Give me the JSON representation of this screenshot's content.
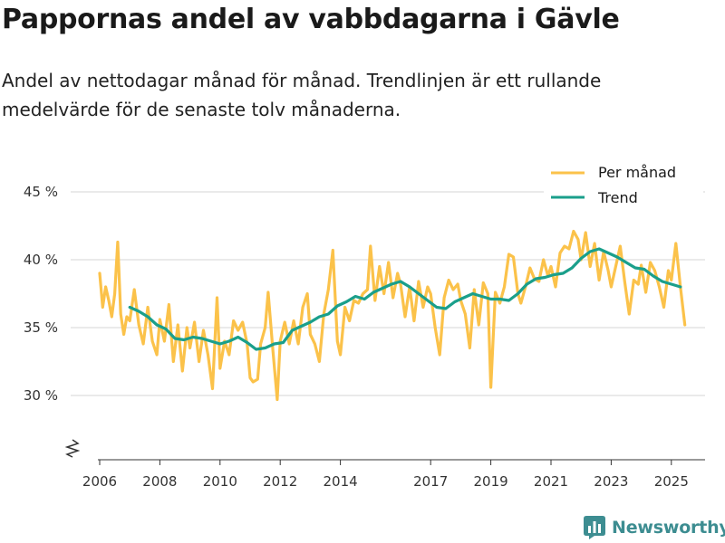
{
  "title": "Pappornas andel av vabbdagarna i Gävle",
  "subtitle": "Andel av nettodagar månad för månad. Trendlinjen är ett rullande medelvärde för de senaste tolv månaderna.",
  "brand": {
    "name": "Newsworthy",
    "icon": "bar-chart-icon"
  },
  "colors": {
    "per_month": "#fbc24a",
    "trend": "#1a9f8b",
    "grid": "#dddddd",
    "axis": "#333333"
  },
  "chart_data": {
    "type": "line",
    "title": "Pappornas andel av vabbdagarna i Gävle",
    "xlabel": "",
    "ylabel": "",
    "xlim": [
      2005.9,
      2026.1
    ],
    "ylim": [
      25,
      45
    ],
    "axis_break": true,
    "grid": true,
    "legend_position": "top-right",
    "x_ticks": [
      2006,
      2008,
      2010,
      2012,
      2014,
      2017,
      2019,
      2021,
      2023,
      2025
    ],
    "x_tick_labels": [
      "2006",
      "2008",
      "2010",
      "2012",
      "2014",
      "2017",
      "2019",
      "2021",
      "2023",
      "2025"
    ],
    "y_ticks": [
      30,
      35,
      40,
      45
    ],
    "y_tick_labels": [
      "30 %",
      "35 %",
      "40 %",
      "45 %"
    ],
    "series": [
      {
        "name": "Per månad",
        "x": [
          2006.0,
          2006.1,
          2006.2,
          2006.3,
          2006.4,
          2006.5,
          2006.6,
          2006.7,
          2006.8,
          2006.9,
          2007.0,
          2007.15,
          2007.3,
          2007.45,
          2007.6,
          2007.75,
          2007.9,
          2008.0,
          2008.15,
          2008.3,
          2008.45,
          2008.6,
          2008.75,
          2008.9,
          2009.0,
          2009.15,
          2009.3,
          2009.45,
          2009.6,
          2009.75,
          2009.9,
          2010.0,
          2010.15,
          2010.3,
          2010.45,
          2010.6,
          2010.75,
          2010.9,
          2011.0,
          2011.1,
          2011.25,
          2011.35,
          2011.5,
          2011.6,
          2011.75,
          2011.9,
          2012.0,
          2012.15,
          2012.3,
          2012.45,
          2012.6,
          2012.75,
          2012.9,
          2013.0,
          2013.15,
          2013.3,
          2013.45,
          2013.6,
          2013.75,
          2013.9,
          2014.0,
          2014.15,
          2014.3,
          2014.45,
          2014.6,
          2014.75,
          2014.9,
          2015.0,
          2015.15,
          2015.3,
          2015.45,
          2015.6,
          2015.75,
          2015.9,
          2016.0,
          2016.15,
          2016.3,
          2016.45,
          2016.6,
          2016.75,
          2016.9,
          2017.0,
          2017.15,
          2017.3,
          2017.45,
          2017.6,
          2017.75,
          2017.9,
          2018.0,
          2018.15,
          2018.3,
          2018.45,
          2018.6,
          2018.75,
          2018.9,
          2019.0,
          2019.15,
          2019.3,
          2019.45,
          2019.6,
          2019.75,
          2019.9,
          2020.0,
          2020.15,
          2020.3,
          2020.45,
          2020.6,
          2020.75,
          2020.9,
          2021.0,
          2021.15,
          2021.3,
          2021.45,
          2021.6,
          2021.75,
          2021.9,
          2022.0,
          2022.15,
          2022.3,
          2022.45,
          2022.6,
          2022.75,
          2022.9,
          2023.0,
          2023.15,
          2023.3,
          2023.45,
          2023.6,
          2023.75,
          2023.9,
          2024.0,
          2024.15,
          2024.3,
          2024.45,
          2024.6,
          2024.75,
          2024.9,
          2025.0,
          2025.15,
          2025.3,
          2025.45
        ],
        "values": [
          39.0,
          36.5,
          38.0,
          37.0,
          35.8,
          37.5,
          41.3,
          36.0,
          34.5,
          35.8,
          35.5,
          37.8,
          35.2,
          33.8,
          36.5,
          34.0,
          33.0,
          35.6,
          34.0,
          36.7,
          32.5,
          35.2,
          31.8,
          35.0,
          33.5,
          35.4,
          32.5,
          34.8,
          33.0,
          30.5,
          37.2,
          32.0,
          34.0,
          33.0,
          35.5,
          34.8,
          35.4,
          33.8,
          31.3,
          31.0,
          31.2,
          33.8,
          35.0,
          37.6,
          33.5,
          29.7,
          34.0,
          35.4,
          33.8,
          35.5,
          33.8,
          36.5,
          37.5,
          34.5,
          33.8,
          32.5,
          36.0,
          37.8,
          40.7,
          34.0,
          33.0,
          36.5,
          35.5,
          37.0,
          36.8,
          37.5,
          37.8,
          41.0,
          37.0,
          39.5,
          37.5,
          39.8,
          37.2,
          39.0,
          38.2,
          35.8,
          38.0,
          35.5,
          38.4,
          36.5,
          38.0,
          37.5,
          35.0,
          33.0,
          37.2,
          38.5,
          37.8,
          38.2,
          37.0,
          36.0,
          33.5,
          37.8,
          35.2,
          38.3,
          37.5,
          30.6,
          37.6,
          36.8,
          38.0,
          40.4,
          40.2,
          37.5,
          36.8,
          38.0,
          39.4,
          38.6,
          38.4,
          40.0,
          38.8,
          39.5,
          38.0,
          40.5,
          41.0,
          40.8,
          42.1,
          41.5,
          40.0,
          42.0,
          39.5,
          41.2,
          38.5,
          40.6,
          39.2,
          38.0,
          39.5,
          41.0,
          38.4,
          36.0,
          38.5,
          38.2,
          39.6,
          37.6,
          39.8,
          39.2,
          38.0,
          36.5,
          39.2,
          38.5,
          41.2,
          38.0,
          35.2
        ]
      },
      {
        "name": "Trend",
        "x": [
          2007.0,
          2007.3,
          2007.6,
          2007.9,
          2008.2,
          2008.5,
          2008.8,
          2009.1,
          2009.4,
          2009.7,
          2010.0,
          2010.3,
          2010.6,
          2010.9,
          2011.2,
          2011.5,
          2011.8,
          2012.1,
          2012.4,
          2012.7,
          2013.0,
          2013.3,
          2013.6,
          2013.9,
          2014.2,
          2014.5,
          2014.8,
          2015.1,
          2015.4,
          2015.7,
          2016.0,
          2016.3,
          2016.6,
          2016.9,
          2017.2,
          2017.5,
          2017.8,
          2018.1,
          2018.4,
          2018.7,
          2019.0,
          2019.3,
          2019.6,
          2019.9,
          2020.2,
          2020.5,
          2020.8,
          2021.1,
          2021.4,
          2021.7,
          2022.0,
          2022.3,
          2022.6,
          2022.9,
          2023.2,
          2023.5,
          2023.8,
          2024.1,
          2024.4,
          2024.7,
          2025.0,
          2025.3
        ],
        "values": [
          36.5,
          36.2,
          35.8,
          35.2,
          34.9,
          34.2,
          34.1,
          34.3,
          34.2,
          34.0,
          33.8,
          34.0,
          34.3,
          33.9,
          33.4,
          33.5,
          33.8,
          33.9,
          34.8,
          35.1,
          35.4,
          35.8,
          36.0,
          36.6,
          36.9,
          37.3,
          37.1,
          37.6,
          37.9,
          38.2,
          38.4,
          38.0,
          37.5,
          37.0,
          36.5,
          36.4,
          36.9,
          37.2,
          37.5,
          37.3,
          37.1,
          37.1,
          37.0,
          37.5,
          38.2,
          38.6,
          38.7,
          38.9,
          39.0,
          39.4,
          40.1,
          40.6,
          40.8,
          40.5,
          40.2,
          39.8,
          39.4,
          39.3,
          38.8,
          38.4,
          38.2,
          38.0
        ]
      }
    ]
  }
}
